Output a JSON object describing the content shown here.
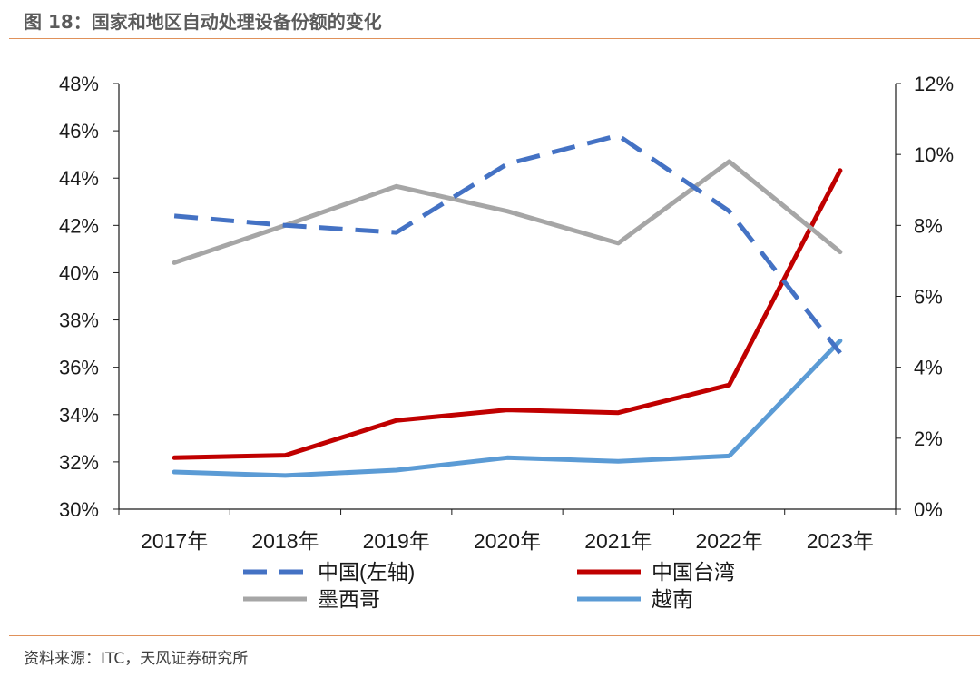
{
  "figure": {
    "title": "图 18：国家和地区自动处理设备份额的变化",
    "source": "资料来源：ITC，天风证券研究所"
  },
  "chart_data": {
    "type": "line",
    "categories": [
      "2017年",
      "2018年",
      "2019年",
      "2020年",
      "2021年",
      "2022年",
      "2023年"
    ],
    "y_left": {
      "ticks": [
        "30%",
        "32%",
        "34%",
        "36%",
        "38%",
        "40%",
        "42%",
        "44%",
        "46%",
        "48%"
      ],
      "range": [
        30,
        48
      ]
    },
    "y_right": {
      "ticks": [
        "0%",
        "2%",
        "4%",
        "6%",
        "8%",
        "10%",
        "12%"
      ],
      "range": [
        0,
        12
      ]
    },
    "grid": false,
    "legend_position": "bottom",
    "series": [
      {
        "name": "中国(左轴)",
        "axis": "left",
        "color": "#4472c4",
        "dash": true,
        "values": [
          42.4,
          42.0,
          41.7,
          44.6,
          45.8,
          42.6,
          36.6
        ]
      },
      {
        "name": "中国台湾",
        "axis": "right",
        "color": "#c00000",
        "dash": false,
        "values": [
          1.45,
          1.52,
          2.5,
          2.8,
          2.72,
          3.5,
          9.55
        ]
      },
      {
        "name": "墨西哥",
        "axis": "right",
        "color": "#a6a6a6",
        "dash": false,
        "values": [
          6.95,
          8.0,
          9.1,
          8.4,
          7.5,
          9.8,
          7.25
        ]
      },
      {
        "name": "越南",
        "axis": "right",
        "color": "#5b9bd5",
        "dash": false,
        "values": [
          1.05,
          0.95,
          1.1,
          1.45,
          1.35,
          1.5,
          4.75
        ]
      }
    ]
  }
}
